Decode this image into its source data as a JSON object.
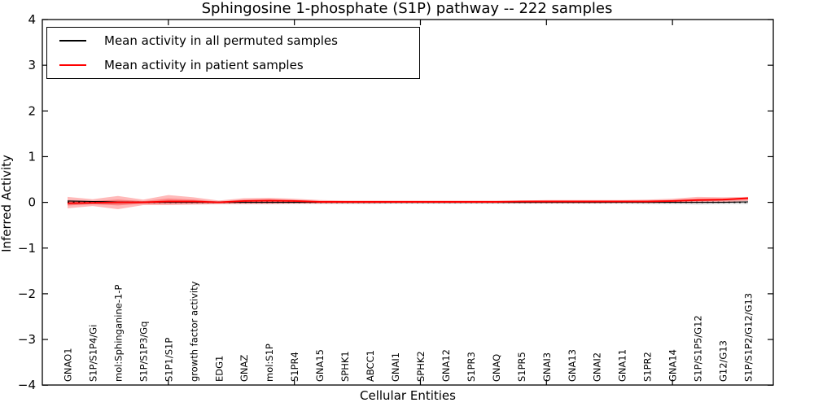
{
  "chart": {
    "type": "line",
    "title": "Sphingosine 1-phosphate (S1P) pathway -- 222 samples",
    "xlabel": "Cellular Entities",
    "ylabel": "Inferred Activity",
    "ylim": [
      -4,
      4
    ],
    "ytick_values": [
      4,
      3,
      2,
      1,
      0,
      -1,
      -2,
      -3,
      -4
    ],
    "ytick_labels": [
      "4",
      "3",
      "2",
      "1",
      "0",
      "−1",
      "−2",
      "−3",
      "−4"
    ],
    "xtick_major_entity_indices": [
      4,
      9,
      14,
      19,
      24
    ],
    "legend": {
      "position": "upper left",
      "items": [
        {
          "label": "Mean activity in all permuted samples",
          "color": "#000000"
        },
        {
          "label": "Mean activity in patient samples",
          "color": "#ff0000"
        }
      ]
    },
    "chart_data": {
      "categories": [
        "GNAO1",
        "S1P/S1P4/Gi",
        "mol:Sphinganine-1-P",
        "S1P/S1P3/Gq",
        "S1P1/S1P",
        "growth factor activity",
        "EDG1",
        "GNAZ",
        "mol:S1P",
        "S1PR4",
        "GNA15",
        "SPHK1",
        "ABCC1",
        "GNAI1",
        "SPHK2",
        "GNA12",
        "S1PR3",
        "GNAQ",
        "S1PR5",
        "GNAI3",
        "GNA13",
        "GNAI2",
        "GNA11",
        "S1PR2",
        "GNA14",
        "S1P/S1P5/G12",
        "G12/G13",
        "S1P/S1P2/G12/G13"
      ],
      "series": [
        {
          "name": "Mean activity in all permuted samples",
          "color": "#000000",
          "values": [
            0.03,
            0.02,
            0.01,
            0.0,
            0.0,
            0.0,
            0.0,
            0.0,
            0.0,
            0.0,
            0.0,
            0.0,
            0.0,
            0.0,
            0.0,
            0.0,
            0.0,
            0.0,
            0.0,
            0.0,
            0.0,
            0.0,
            0.0,
            0.0,
            0.0,
            0.0,
            0.0,
            0.01
          ]
        },
        {
          "name": "Mean activity in patient samples",
          "color": "#ff0000",
          "values": [
            -0.02,
            -0.01,
            0.0,
            0.0,
            0.02,
            0.02,
            0.0,
            0.03,
            0.04,
            0.03,
            0.01,
            0.01,
            0.01,
            0.01,
            0.01,
            0.01,
            0.01,
            0.01,
            0.02,
            0.02,
            0.02,
            0.02,
            0.02,
            0.02,
            0.03,
            0.05,
            0.06,
            0.09
          ]
        }
      ],
      "bands": [
        {
          "name": "permuted samples spread",
          "color": "#aaaaaa",
          "opacity": 0.4,
          "upper": [
            0.05,
            0.04,
            0.04,
            0.03,
            0.03,
            0.03,
            0.03,
            0.03,
            0.03,
            0.03,
            0.03,
            0.03,
            0.03,
            0.03,
            0.03,
            0.03,
            0.03,
            0.03,
            0.03,
            0.03,
            0.03,
            0.03,
            0.03,
            0.04,
            0.04,
            0.05,
            0.04,
            0.04
          ],
          "lower": [
            -0.05,
            -0.04,
            -0.04,
            -0.03,
            -0.03,
            -0.03,
            -0.03,
            -0.03,
            -0.03,
            -0.03,
            -0.03,
            -0.03,
            -0.03,
            -0.03,
            -0.03,
            -0.03,
            -0.03,
            -0.03,
            -0.03,
            -0.03,
            -0.03,
            -0.03,
            -0.03,
            -0.04,
            -0.04,
            -0.05,
            -0.04,
            -0.04
          ]
        },
        {
          "name": "patient samples spread",
          "color": "#ff0000",
          "opacity": 0.27,
          "upper": [
            0.12,
            0.07,
            0.14,
            0.06,
            0.16,
            0.11,
            0.04,
            0.09,
            0.1,
            0.08,
            0.05,
            0.04,
            0.04,
            0.04,
            0.04,
            0.04,
            0.04,
            0.04,
            0.04,
            0.05,
            0.05,
            0.05,
            0.05,
            0.06,
            0.08,
            0.12,
            0.11,
            0.12
          ],
          "lower": [
            -0.13,
            -0.08,
            -0.15,
            -0.06,
            -0.06,
            -0.05,
            -0.04,
            -0.04,
            -0.04,
            -0.03,
            -0.03,
            -0.03,
            -0.03,
            -0.02,
            -0.02,
            -0.02,
            -0.02,
            -0.02,
            -0.02,
            -0.02,
            -0.02,
            -0.02,
            -0.01,
            -0.01,
            -0.01,
            -0.01,
            0.0,
            0.03
          ]
        }
      ],
      "zero_line": {
        "value": 0,
        "color": "#000000",
        "style": "dotted"
      }
    }
  }
}
